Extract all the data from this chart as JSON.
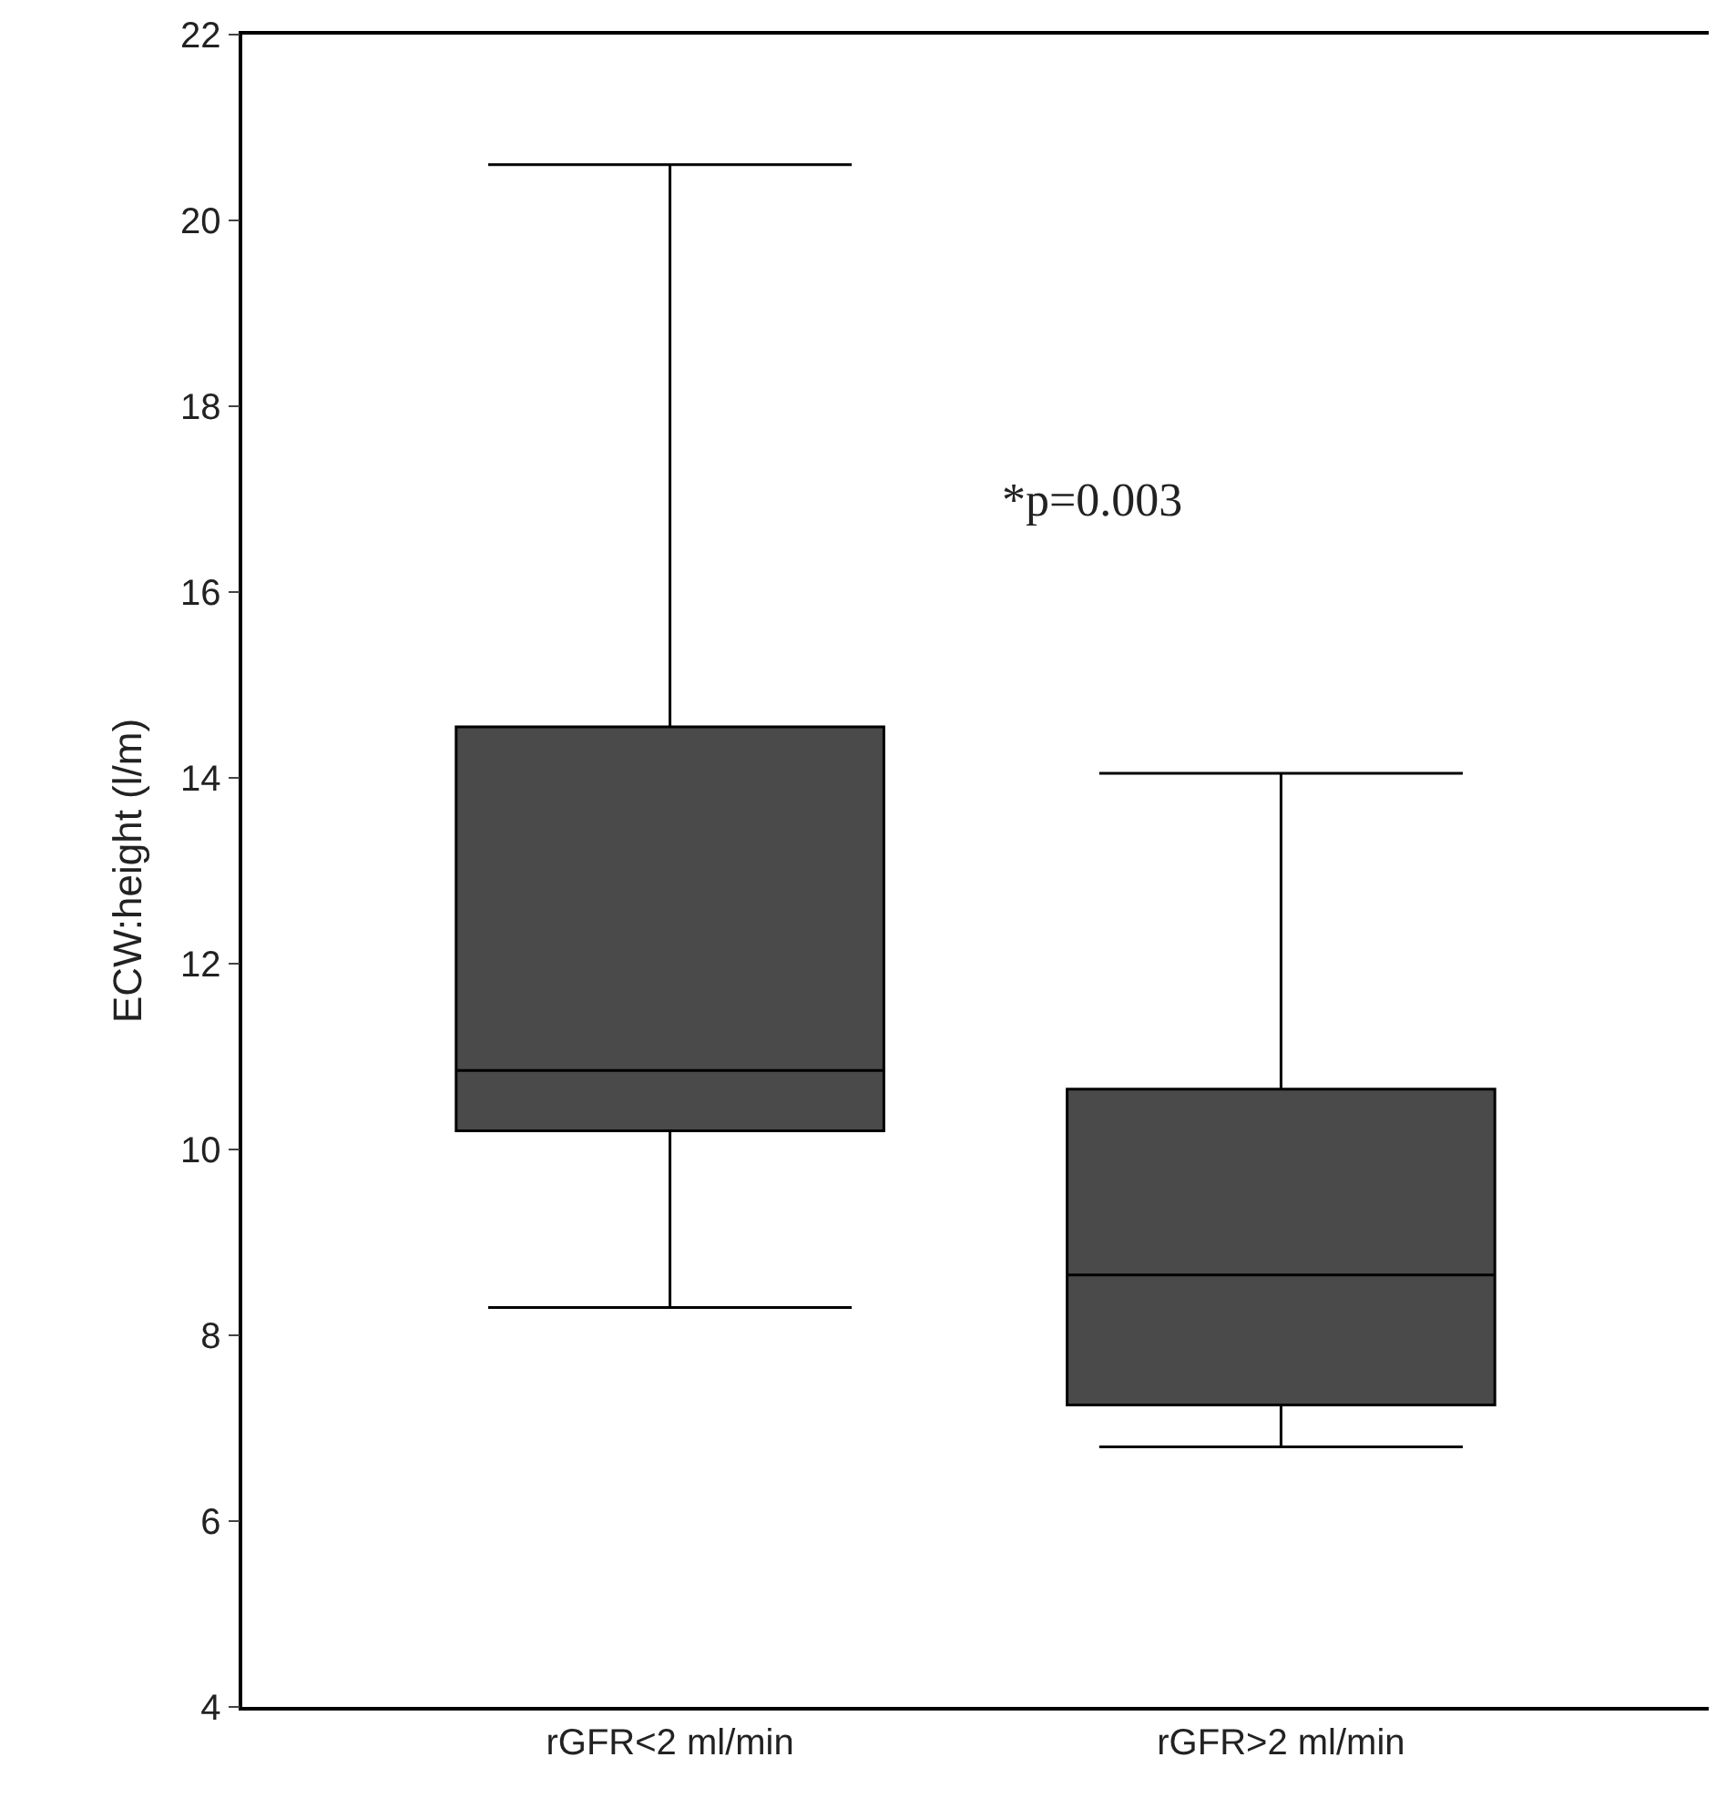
{
  "chart_data": {
    "type": "box",
    "ylabel": "ECW:height (l/m)",
    "categories": [
      "rGFR<2 ml/min",
      "rGFR>2 ml/min"
    ],
    "boxes": [
      {
        "low": 8.3,
        "q1": 10.2,
        "median": 10.85,
        "q3": 14.55,
        "high": 20.6
      },
      {
        "low": 6.8,
        "q1": 7.25,
        "median": 8.65,
        "q3": 10.65,
        "high": 14.05
      }
    ],
    "color": "#4a4a4a",
    "ylim": [
      4,
      22
    ],
    "yticks": [
      4,
      6,
      8,
      10,
      12,
      14,
      16,
      18,
      20,
      22
    ],
    "annotations": [
      "*p=0.003"
    ]
  }
}
